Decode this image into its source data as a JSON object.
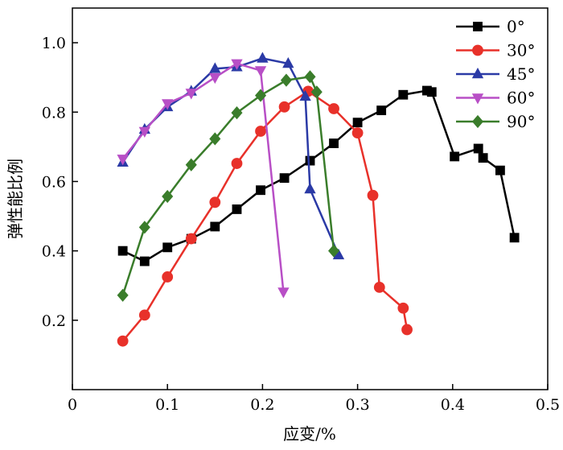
{
  "chart_data": {
    "type": "line",
    "title": "",
    "xlabel": "应变/%",
    "ylabel": "弹性能比例",
    "xlim": [
      0,
      0.5
    ],
    "ylim": [
      0,
      1.1
    ],
    "x_ticks": [
      {
        "value": 0,
        "label": "0"
      },
      {
        "value": 0.1,
        "label": "0.1"
      },
      {
        "value": 0.2,
        "label": "0.2"
      },
      {
        "value": 0.3,
        "label": "0.3"
      },
      {
        "value": 0.4,
        "label": "0.4"
      },
      {
        "value": 0.5,
        "label": "0.5"
      }
    ],
    "y_ticks": [
      {
        "value": 0.2,
        "label": "0.2"
      },
      {
        "value": 0.4,
        "label": "0.4"
      },
      {
        "value": 0.6,
        "label": "0.6"
      },
      {
        "value": 0.8,
        "label": "0.8"
      },
      {
        "value": 1.0,
        "label": "1.0"
      }
    ],
    "grid": false,
    "legend_position": "top-right",
    "series": [
      {
        "name": "0°",
        "color": "#000000",
        "marker": "square",
        "points": [
          [
            0.053,
            0.4
          ],
          [
            0.076,
            0.37
          ],
          [
            0.1,
            0.41
          ],
          [
            0.125,
            0.435
          ],
          [
            0.15,
            0.47
          ],
          [
            0.173,
            0.52
          ],
          [
            0.198,
            0.575
          ],
          [
            0.223,
            0.61
          ],
          [
            0.25,
            0.66
          ],
          [
            0.275,
            0.71
          ],
          [
            0.3,
            0.77
          ],
          [
            0.325,
            0.805
          ],
          [
            0.348,
            0.85
          ],
          [
            0.373,
            0.862
          ],
          [
            0.378,
            0.858
          ],
          [
            0.402,
            0.672
          ],
          [
            0.427,
            0.695
          ],
          [
            0.432,
            0.668
          ],
          [
            0.45,
            0.632
          ],
          [
            0.465,
            0.438
          ]
        ]
      },
      {
        "name": "30°",
        "color": "#e8312a",
        "marker": "circle",
        "points": [
          [
            0.053,
            0.14
          ],
          [
            0.076,
            0.215
          ],
          [
            0.1,
            0.325
          ],
          [
            0.125,
            0.435
          ],
          [
            0.15,
            0.54
          ],
          [
            0.173,
            0.652
          ],
          [
            0.198,
            0.745
          ],
          [
            0.223,
            0.815
          ],
          [
            0.248,
            0.86
          ],
          [
            0.275,
            0.81
          ],
          [
            0.3,
            0.74
          ],
          [
            0.316,
            0.56
          ],
          [
            0.323,
            0.295
          ],
          [
            0.348,
            0.235
          ],
          [
            0.352,
            0.173
          ]
        ]
      },
      {
        "name": "45°",
        "color": "#2b3aa6",
        "marker": "triangle-up",
        "points": [
          [
            0.053,
            0.655
          ],
          [
            0.076,
            0.75
          ],
          [
            0.1,
            0.815
          ],
          [
            0.125,
            0.86
          ],
          [
            0.15,
            0.925
          ],
          [
            0.173,
            0.93
          ],
          [
            0.2,
            0.955
          ],
          [
            0.227,
            0.94
          ],
          [
            0.245,
            0.845
          ],
          [
            0.25,
            0.578
          ],
          [
            0.28,
            0.388
          ]
        ]
      },
      {
        "name": "60°",
        "color": "#b84fc6",
        "marker": "triangle-down",
        "points": [
          [
            0.053,
            0.665
          ],
          [
            0.076,
            0.745
          ],
          [
            0.1,
            0.825
          ],
          [
            0.125,
            0.855
          ],
          [
            0.15,
            0.9
          ],
          [
            0.173,
            0.94
          ],
          [
            0.198,
            0.92
          ],
          [
            0.222,
            0.282
          ]
        ]
      },
      {
        "name": "90°",
        "color": "#3a7d2b",
        "marker": "diamond",
        "points": [
          [
            0.053,
            0.272
          ],
          [
            0.076,
            0.468
          ],
          [
            0.1,
            0.557
          ],
          [
            0.125,
            0.648
          ],
          [
            0.15,
            0.723
          ],
          [
            0.173,
            0.798
          ],
          [
            0.198,
            0.848
          ],
          [
            0.225,
            0.892
          ],
          [
            0.25,
            0.902
          ],
          [
            0.257,
            0.858
          ],
          [
            0.275,
            0.4
          ]
        ]
      }
    ]
  }
}
